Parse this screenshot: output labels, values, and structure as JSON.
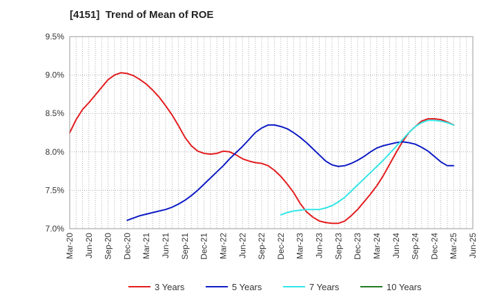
{
  "chart_data": {
    "type": "line",
    "title": "[4151]  Trend of Mean of ROE",
    "xlabel": "",
    "ylabel": "",
    "ylim": [
      7.0,
      9.5
    ],
    "yticks": [
      {
        "value": 7.0,
        "label": "7.0%"
      },
      {
        "value": 7.5,
        "label": "7.5%"
      },
      {
        "value": 8.0,
        "label": "8.0%"
      },
      {
        "value": 8.5,
        "label": "8.5%"
      },
      {
        "value": 9.0,
        "label": "9.0%"
      },
      {
        "value": 9.5,
        "label": "9.5%"
      }
    ],
    "xticks": [
      {
        "value": "2020-03",
        "label": "Mar-20"
      },
      {
        "value": "2020-06",
        "label": "Jun-20"
      },
      {
        "value": "2020-09",
        "label": "Sep-20"
      },
      {
        "value": "2020-12",
        "label": "Dec-20"
      },
      {
        "value": "2021-03",
        "label": "Mar-21"
      },
      {
        "value": "2021-06",
        "label": "Jun-21"
      },
      {
        "value": "2021-09",
        "label": "Sep-21"
      },
      {
        "value": "2021-12",
        "label": "Dec-21"
      },
      {
        "value": "2022-03",
        "label": "Mar-22"
      },
      {
        "value": "2022-06",
        "label": "Jun-22"
      },
      {
        "value": "2022-09",
        "label": "Sep-22"
      },
      {
        "value": "2022-12",
        "label": "Dec-22"
      },
      {
        "value": "2023-03",
        "label": "Mar-23"
      },
      {
        "value": "2023-06",
        "label": "Jun-23"
      },
      {
        "value": "2023-09",
        "label": "Sep-23"
      },
      {
        "value": "2023-12",
        "label": "Dec-23"
      },
      {
        "value": "2024-03",
        "label": "Mar-24"
      },
      {
        "value": "2024-06",
        "label": "Jun-24"
      },
      {
        "value": "2024-09",
        "label": "Sep-24"
      },
      {
        "value": "2024-12",
        "label": "Dec-24"
      },
      {
        "value": "2025-03",
        "label": "Mar-25"
      },
      {
        "value": "2025-06",
        "label": "Jun-25"
      }
    ],
    "xlim": [
      "2020-03",
      "2025-06"
    ],
    "grid": true,
    "legend_position": "bottom",
    "series": [
      {
        "name": "3 Years",
        "color": "#e31a1c",
        "points": [
          [
            "2020-03",
            8.25
          ],
          [
            "2020-04",
            8.42
          ],
          [
            "2020-05",
            8.55
          ],
          [
            "2020-06",
            8.64
          ],
          [
            "2020-07",
            8.74
          ],
          [
            "2020-08",
            8.84
          ],
          [
            "2020-09",
            8.94
          ],
          [
            "2020-10",
            9.0
          ],
          [
            "2020-11",
            9.03
          ],
          [
            "2020-12",
            9.02
          ],
          [
            "2021-01",
            8.99
          ],
          [
            "2021-02",
            8.94
          ],
          [
            "2021-03",
            8.88
          ],
          [
            "2021-04",
            8.8
          ],
          [
            "2021-05",
            8.71
          ],
          [
            "2021-06",
            8.6
          ],
          [
            "2021-07",
            8.48
          ],
          [
            "2021-08",
            8.34
          ],
          [
            "2021-09",
            8.19
          ],
          [
            "2021-10",
            8.08
          ],
          [
            "2021-11",
            8.01
          ],
          [
            "2021-12",
            7.98
          ],
          [
            "2022-01",
            7.97
          ],
          [
            "2022-02",
            7.98
          ],
          [
            "2022-03",
            8.01
          ],
          [
            "2022-04",
            8.0
          ],
          [
            "2022-05",
            7.96
          ],
          [
            "2022-06",
            7.91
          ],
          [
            "2022-07",
            7.88
          ],
          [
            "2022-08",
            7.86
          ],
          [
            "2022-09",
            7.85
          ],
          [
            "2022-10",
            7.82
          ],
          [
            "2022-11",
            7.76
          ],
          [
            "2022-12",
            7.68
          ],
          [
            "2023-01",
            7.58
          ],
          [
            "2023-02",
            7.47
          ],
          [
            "2023-03",
            7.33
          ],
          [
            "2023-04",
            7.22
          ],
          [
            "2023-05",
            7.15
          ],
          [
            "2023-06",
            7.1
          ],
          [
            "2023-07",
            7.08
          ],
          [
            "2023-08",
            7.07
          ],
          [
            "2023-09",
            7.07
          ],
          [
            "2023-10",
            7.1
          ],
          [
            "2023-11",
            7.17
          ],
          [
            "2023-12",
            7.25
          ],
          [
            "2024-01",
            7.35
          ],
          [
            "2024-02",
            7.45
          ],
          [
            "2024-03",
            7.56
          ],
          [
            "2024-04",
            7.69
          ],
          [
            "2024-05",
            7.84
          ],
          [
            "2024-06",
            7.99
          ],
          [
            "2024-07",
            8.13
          ],
          [
            "2024-08",
            8.25
          ],
          [
            "2024-09",
            8.33
          ],
          [
            "2024-10",
            8.4
          ],
          [
            "2024-11",
            8.43
          ],
          [
            "2024-12",
            8.43
          ],
          [
            "2025-01",
            8.42
          ],
          [
            "2025-02",
            8.39
          ],
          [
            "2025-03",
            8.35
          ]
        ]
      },
      {
        "name": "5 Years",
        "color": "#0b19c4",
        "points": [
          [
            "2020-12",
            7.11
          ],
          [
            "2021-01",
            7.14
          ],
          [
            "2021-02",
            7.17
          ],
          [
            "2021-03",
            7.19
          ],
          [
            "2021-04",
            7.21
          ],
          [
            "2021-05",
            7.23
          ],
          [
            "2021-06",
            7.25
          ],
          [
            "2021-07",
            7.28
          ],
          [
            "2021-08",
            7.32
          ],
          [
            "2021-09",
            7.37
          ],
          [
            "2021-10",
            7.43
          ],
          [
            "2021-11",
            7.5
          ],
          [
            "2021-12",
            7.58
          ],
          [
            "2022-01",
            7.66
          ],
          [
            "2022-02",
            7.74
          ],
          [
            "2022-03",
            7.82
          ],
          [
            "2022-04",
            7.91
          ],
          [
            "2022-05",
            7.99
          ],
          [
            "2022-06",
            8.07
          ],
          [
            "2022-07",
            8.16
          ],
          [
            "2022-08",
            8.25
          ],
          [
            "2022-09",
            8.31
          ],
          [
            "2022-10",
            8.35
          ],
          [
            "2022-11",
            8.35
          ],
          [
            "2022-12",
            8.33
          ],
          [
            "2023-01",
            8.3
          ],
          [
            "2023-02",
            8.25
          ],
          [
            "2023-03",
            8.19
          ],
          [
            "2023-04",
            8.12
          ],
          [
            "2023-05",
            8.04
          ],
          [
            "2023-06",
            7.96
          ],
          [
            "2023-07",
            7.88
          ],
          [
            "2023-08",
            7.83
          ],
          [
            "2023-09",
            7.81
          ],
          [
            "2023-10",
            7.82
          ],
          [
            "2023-11",
            7.85
          ],
          [
            "2023-12",
            7.89
          ],
          [
            "2024-01",
            7.94
          ],
          [
            "2024-02",
            8.0
          ],
          [
            "2024-03",
            8.05
          ],
          [
            "2024-04",
            8.08
          ],
          [
            "2024-05",
            8.1
          ],
          [
            "2024-06",
            8.12
          ],
          [
            "2024-07",
            8.13
          ],
          [
            "2024-08",
            8.12
          ],
          [
            "2024-09",
            8.1
          ],
          [
            "2024-10",
            8.06
          ],
          [
            "2024-11",
            8.01
          ],
          [
            "2024-12",
            7.94
          ],
          [
            "2025-01",
            7.87
          ],
          [
            "2025-02",
            7.82
          ],
          [
            "2025-03",
            7.82
          ]
        ]
      },
      {
        "name": "7 Years",
        "color": "#33e6e6",
        "points": [
          [
            "2022-12",
            7.18
          ],
          [
            "2023-01",
            7.21
          ],
          [
            "2023-02",
            7.23
          ],
          [
            "2023-03",
            7.24
          ],
          [
            "2023-04",
            7.25
          ],
          [
            "2023-05",
            7.25
          ],
          [
            "2023-06",
            7.25
          ],
          [
            "2023-07",
            7.27
          ],
          [
            "2023-08",
            7.3
          ],
          [
            "2023-09",
            7.35
          ],
          [
            "2023-10",
            7.41
          ],
          [
            "2023-11",
            7.49
          ],
          [
            "2023-12",
            7.57
          ],
          [
            "2024-01",
            7.65
          ],
          [
            "2024-02",
            7.73
          ],
          [
            "2024-03",
            7.81
          ],
          [
            "2024-04",
            7.89
          ],
          [
            "2024-05",
            7.98
          ],
          [
            "2024-06",
            8.07
          ],
          [
            "2024-07",
            8.16
          ],
          [
            "2024-08",
            8.25
          ],
          [
            "2024-09",
            8.33
          ],
          [
            "2024-10",
            8.38
          ],
          [
            "2024-11",
            8.41
          ],
          [
            "2024-12",
            8.41
          ],
          [
            "2025-01",
            8.4
          ],
          [
            "2025-02",
            8.38
          ],
          [
            "2025-03",
            8.35
          ]
        ]
      },
      {
        "name": "10 Years",
        "color": "#1f7a1f",
        "points": []
      }
    ]
  }
}
